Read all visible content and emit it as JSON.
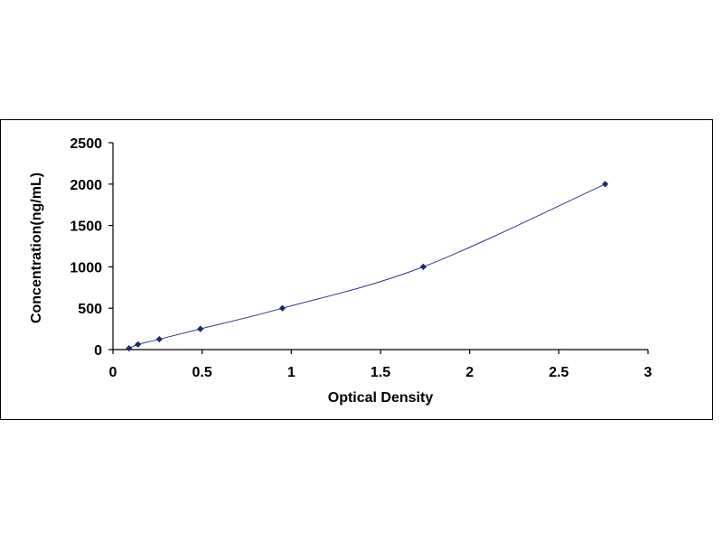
{
  "chart_data": {
    "type": "scatter",
    "xlabel": "Optical Density",
    "ylabel": "Concentration(ng/mL)",
    "xlim": [
      0,
      3
    ],
    "ylim": [
      0,
      2500
    ],
    "xticks": [
      "0",
      "0.5",
      "1",
      "1.5",
      "2",
      "2.5",
      "3"
    ],
    "yticks": [
      "0",
      "500",
      "1000",
      "1500",
      "2000",
      "2500"
    ],
    "grid": false,
    "legend": "none",
    "line_style": "smooth-curve",
    "series": [
      {
        "points": [
          {
            "x": 0.09,
            "y": 15.6
          },
          {
            "x": 0.14,
            "y": 62.5
          },
          {
            "x": 0.26,
            "y": 125
          },
          {
            "x": 0.49,
            "y": 250
          },
          {
            "x": 0.95,
            "y": 500
          },
          {
            "x": 1.74,
            "y": 1000
          },
          {
            "x": 2.76,
            "y": 2000
          }
        ],
        "marker_color": "#1a2a6c",
        "line_color": "#2b3a8c"
      }
    ]
  }
}
